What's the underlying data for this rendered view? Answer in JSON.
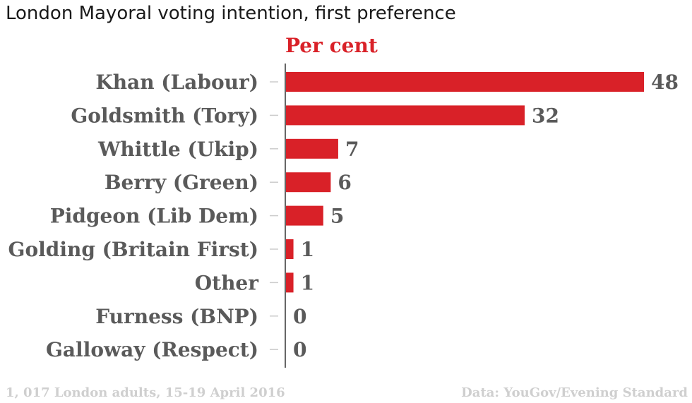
{
  "chart_data": {
    "type": "bar",
    "orientation": "horizontal",
    "title": "London Mayoral voting intention, first preference",
    "unit_label": "Per cent",
    "categories": [
      "Khan (Labour)",
      "Goldsmith (Tory)",
      "Whittle (Ukip)",
      "Berry (Green)",
      "Pidgeon (Lib Dem)",
      "Golding (Britain First)",
      "Other",
      "Furness (BNP)",
      "Galloway (Respect)"
    ],
    "values": [
      48,
      32,
      7,
      6,
      5,
      1,
      1,
      0,
      0
    ],
    "xlim": [
      0,
      48
    ],
    "grid": false,
    "bar_color": "#d92128",
    "text_color": "#5a5a5a"
  },
  "footer": {
    "sample": "1, 017 London adults, 15-19 April 2016",
    "source": "Data: YouGov/Evening Standard"
  },
  "colors": {
    "accent": "#d92128",
    "footer_text": "#cfcfcf"
  }
}
